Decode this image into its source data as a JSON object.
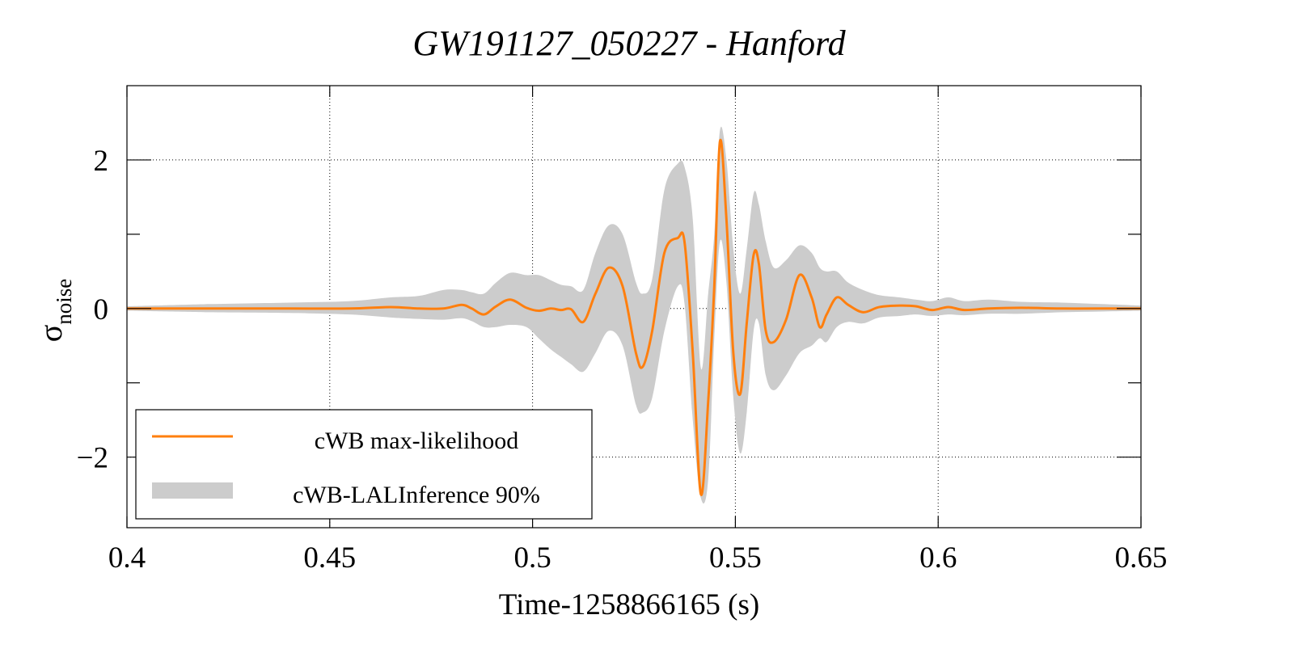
{
  "chart_data": {
    "type": "line",
    "title": "GW191127_050227 - Hanford",
    "xlabel": "Time-1258866165 (s)",
    "ylabel_main": "σ",
    "ylabel_sub": "noise",
    "xlim": [
      0.4,
      0.65
    ],
    "ylim": [
      -2.95,
      3.0
    ],
    "xticks": [
      0.4,
      0.45,
      0.5,
      0.55,
      0.6,
      0.65
    ],
    "xtick_labels": [
      "0.4",
      "0.45",
      "0.5",
      "0.55",
      "0.6",
      "0.65"
    ],
    "yticks": [
      -2,
      0,
      2
    ],
    "ytick_labels": [
      "−2",
      "0",
      "2"
    ],
    "yminor_ticks": [
      -1,
      1
    ],
    "grid": true,
    "legend": {
      "position": "bottom-left",
      "entries": [
        "cWB max-likelihood",
        "cWB-LALInference 90%"
      ]
    },
    "colors": {
      "line": "#ff7f0e",
      "band": "#cccccc"
    },
    "series": [
      {
        "name": "cWB max-likelihood",
        "x": [
          0.4,
          0.42,
          0.44,
          0.455,
          0.465,
          0.472,
          0.478,
          0.4825,
          0.485,
          0.488,
          0.491,
          0.4945,
          0.4985,
          0.5015,
          0.5045,
          0.507,
          0.5095,
          0.5125,
          0.5155,
          0.5188,
          0.5222,
          0.5255,
          0.5272,
          0.5295,
          0.5325,
          0.5358,
          0.5375,
          0.5395,
          0.5415,
          0.5433,
          0.5448,
          0.5462,
          0.5478,
          0.5495,
          0.5512,
          0.5528,
          0.5545,
          0.5558,
          0.5575,
          0.5595,
          0.5625,
          0.5658,
          0.5688,
          0.5708,
          0.5725,
          0.575,
          0.5778,
          0.5815,
          0.5855,
          0.5905,
          0.5945,
          0.5985,
          0.6025,
          0.6065,
          0.6125,
          0.6205,
          0.6305,
          0.6405,
          0.65
        ],
        "values": [
          0.0,
          0.0,
          0.0,
          0.0,
          0.02,
          0.0,
          0.0,
          0.05,
          0.0,
          -0.08,
          0.03,
          0.12,
          0.01,
          -0.03,
          0.0,
          -0.02,
          -0.01,
          -0.18,
          0.2,
          0.55,
          0.3,
          -0.6,
          -0.78,
          -0.3,
          0.75,
          0.95,
          0.88,
          -0.6,
          -2.5,
          -1.25,
          0.3,
          2.25,
          1.2,
          -0.6,
          -1.15,
          -0.2,
          0.72,
          0.6,
          -0.3,
          -0.45,
          -0.15,
          0.45,
          0.15,
          -0.25,
          -0.08,
          0.15,
          0.05,
          -0.05,
          0.02,
          0.04,
          0.03,
          -0.02,
          0.02,
          -0.02,
          0.0,
          0.01,
          0.0,
          0.0,
          0.0
        ]
      },
      {
        "name": "cWB-LALInference 90%",
        "type": "band",
        "x": [
          0.4,
          0.42,
          0.44,
          0.455,
          0.465,
          0.472,
          0.478,
          0.4825,
          0.485,
          0.488,
          0.491,
          0.4945,
          0.4985,
          0.5015,
          0.5045,
          0.507,
          0.5095,
          0.5125,
          0.5155,
          0.5188,
          0.5222,
          0.5255,
          0.5272,
          0.5295,
          0.5325,
          0.5358,
          0.5375,
          0.5395,
          0.5415,
          0.5433,
          0.5448,
          0.5462,
          0.5478,
          0.5495,
          0.5512,
          0.5528,
          0.5545,
          0.5558,
          0.5575,
          0.5595,
          0.5625,
          0.5658,
          0.5688,
          0.5708,
          0.5725,
          0.575,
          0.5778,
          0.5815,
          0.5855,
          0.5905,
          0.5945,
          0.5985,
          0.6025,
          0.6065,
          0.6125,
          0.6205,
          0.6305,
          0.6405,
          0.65
        ],
        "upper": [
          0.03,
          0.06,
          0.08,
          0.1,
          0.15,
          0.17,
          0.25,
          0.25,
          0.22,
          0.2,
          0.35,
          0.48,
          0.45,
          0.45,
          0.38,
          0.32,
          0.3,
          0.25,
          0.75,
          1.12,
          1.0,
          0.35,
          0.2,
          0.4,
          1.6,
          1.95,
          1.9,
          1.2,
          -0.8,
          0.2,
          1.0,
          2.4,
          2.0,
          0.8,
          0.2,
          0.8,
          1.55,
          1.4,
          0.9,
          0.55,
          0.65,
          0.85,
          0.75,
          0.55,
          0.5,
          0.5,
          0.35,
          0.25,
          0.18,
          0.15,
          0.12,
          0.1,
          0.15,
          0.1,
          0.12,
          0.09,
          0.08,
          0.06,
          0.04
        ],
        "lower": [
          -0.03,
          -0.05,
          -0.06,
          -0.08,
          -0.12,
          -0.14,
          -0.15,
          -0.13,
          -0.17,
          -0.25,
          -0.25,
          -0.22,
          -0.25,
          -0.4,
          -0.55,
          -0.65,
          -0.75,
          -0.85,
          -0.6,
          -0.3,
          -0.5,
          -1.3,
          -1.4,
          -1.2,
          -0.3,
          0.3,
          0.05,
          -1.5,
          -2.55,
          -2.3,
          -0.4,
          0.9,
          0.35,
          -1.2,
          -1.95,
          -1.4,
          -0.3,
          -0.2,
          -0.9,
          -1.1,
          -0.9,
          -0.6,
          -0.5,
          -0.4,
          -0.45,
          -0.25,
          -0.18,
          -0.2,
          -0.12,
          -0.1,
          -0.08,
          -0.1,
          -0.08,
          -0.09,
          -0.07,
          -0.07,
          -0.05,
          -0.04,
          -0.03
        ]
      }
    ]
  }
}
